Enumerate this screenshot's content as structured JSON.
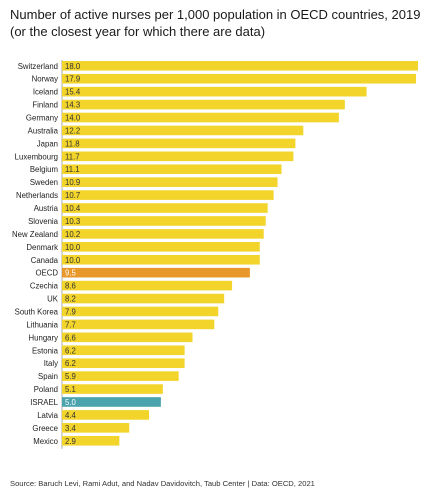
{
  "title_line1": "Number  of active nurses per 1,000 population in OECD countries, 2019",
  "title_line2": "(or the closest year for which there are data)",
  "footnote": "Source: Baruch Levi, Rami Adut, and Nadav Davidovitch, Taub Center | Data: OECD, 2021",
  "colors": {
    "default": "#f2d42b",
    "oecd": "#e8972b",
    "israel": "#4aa3ad",
    "label_light": "#ffffff"
  },
  "chart_data": {
    "type": "bar",
    "orientation": "horizontal",
    "categories": [
      "Switzerland",
      "Norway",
      "Iceland",
      "Finland",
      "Germany",
      "Australia",
      "Japan",
      "Luxembourg",
      "Belgium",
      "Sweden",
      "Netherlands",
      "Austria",
      "Slovenia",
      "New Zealand",
      "Denmark",
      "Canada",
      "OECD",
      "Czechia",
      "UK",
      "South Korea",
      "Lithuania",
      "Hungary",
      "Estonia",
      "Italy",
      "Spain",
      "Poland",
      "ISRAEL",
      "Latvia",
      "Greece",
      "Mexico"
    ],
    "values": [
      18.0,
      17.9,
      15.4,
      14.3,
      14.0,
      12.2,
      11.8,
      11.7,
      11.1,
      10.9,
      10.7,
      10.4,
      10.3,
      10.2,
      10.0,
      10.0,
      9.5,
      8.6,
      8.2,
      7.9,
      7.7,
      6.6,
      6.2,
      6.2,
      5.9,
      5.1,
      5.0,
      4.4,
      3.4,
      2.9
    ],
    "labels": [
      "18.0",
      "17.9",
      "15.4",
      "14.3",
      "14.0",
      "12.2",
      "11.8",
      "11.7",
      "11.1",
      "10.9",
      "10.7",
      "10.4",
      "10.3",
      "10.2",
      "10.0",
      "10.0",
      "9.5",
      "8.6",
      "8.2",
      "7.9",
      "7.7",
      "6.6",
      "6.2",
      "6.2",
      "5.9",
      "5.1",
      "5.0",
      "4.4",
      "3.4",
      "2.9"
    ],
    "highlight": {
      "OECD": "oecd",
      "ISRAEL": "israel"
    },
    "xlim": [
      0,
      18
    ],
    "grid": false,
    "legend": "none"
  }
}
